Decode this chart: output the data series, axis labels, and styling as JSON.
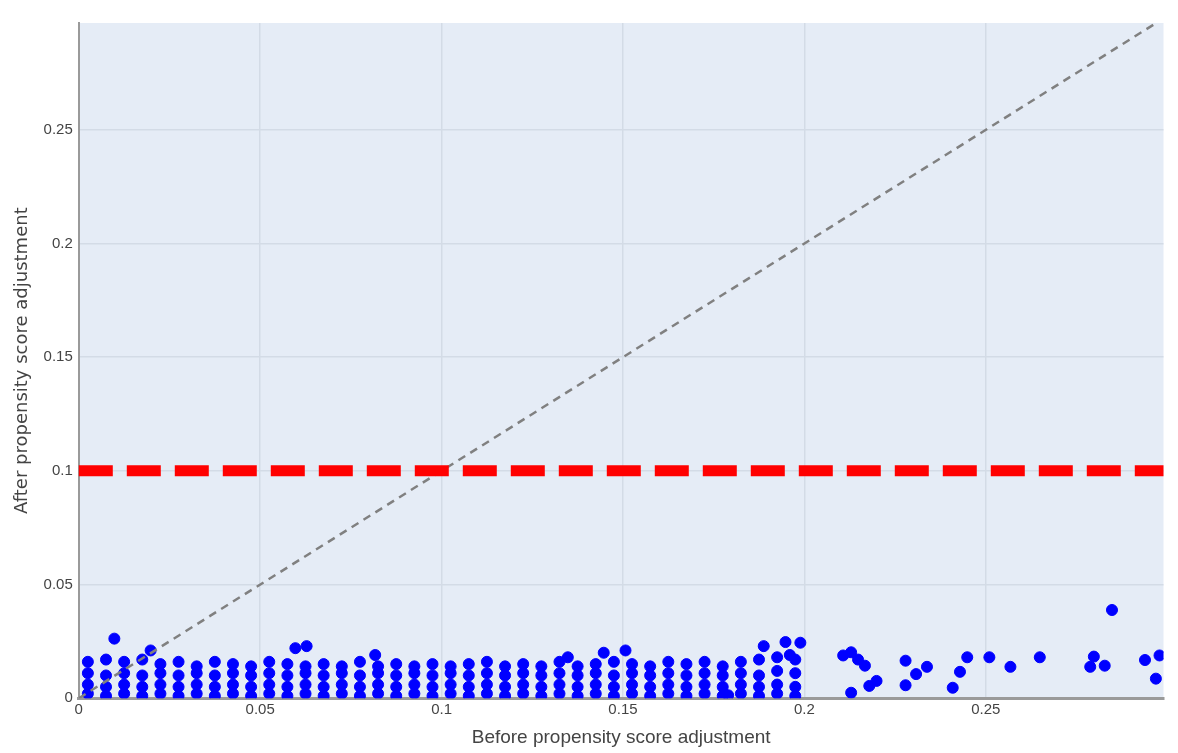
{
  "chart_data": {
    "type": "scatter",
    "xlabel": "Before propensity score adjustment",
    "ylabel": "After propensity score adjustment",
    "xlim": [
      0,
      0.299
    ],
    "ylim": [
      0,
      0.297
    ],
    "xticks": [
      0,
      0.05,
      0.1,
      0.15,
      0.2,
      0.25
    ],
    "yticks": [
      0,
      0.05,
      0.1,
      0.15,
      0.2,
      0.25
    ],
    "grid": true,
    "legend": false,
    "marker": "circle",
    "series": [
      {
        "color": "#0000ff",
        "x": [
          0.0025,
          0.0075,
          0.0125,
          0.0175,
          0.0225,
          0.0275,
          0.0325,
          0.0375,
          0.0425,
          0.0475,
          0.0525,
          0.0575,
          0.0625,
          0.0675,
          0.0725,
          0.0775,
          0.0825,
          0.0875,
          0.0925,
          0.0975,
          0.1025,
          0.1075,
          0.1125,
          0.1175,
          0.1225,
          0.1275,
          0.1325,
          0.1375,
          0.1425,
          0.1475,
          0.1525,
          0.1575,
          0.1625,
          0.1675,
          0.1725,
          0.1775,
          0.1825,
          0.1875,
          0.1925,
          0.1975
        ],
        "values": [
          0.016,
          0.017,
          0.016,
          0.017,
          0.015,
          0.016,
          0.014,
          0.016,
          0.015,
          0.014,
          0.016,
          0.015,
          0.014,
          0.015,
          0.014,
          0.016,
          0.014,
          0.015,
          0.014,
          0.015,
          0.014,
          0.015,
          0.016,
          0.014,
          0.015,
          0.014,
          0.016,
          0.014,
          0.015,
          0.016,
          0.015,
          0.014,
          0.016,
          0.015,
          0.016,
          0.014,
          0.016,
          0.017,
          0.018,
          0.017
        ]
      },
      {
        "color": "#0000ff",
        "x": [
          0.0025,
          0.0075,
          0.0125,
          0.0175,
          0.0225,
          0.0275,
          0.0325,
          0.0375,
          0.0425,
          0.0475,
          0.0525,
          0.0575,
          0.0625,
          0.0675,
          0.0725,
          0.0775,
          0.0825,
          0.0875,
          0.0925,
          0.0975,
          0.1025,
          0.1075,
          0.1125,
          0.1175,
          0.1225,
          0.1275,
          0.1325,
          0.1375,
          0.1425,
          0.1475,
          0.1525,
          0.1575,
          0.1625,
          0.1675,
          0.1725,
          0.1775,
          0.1825,
          0.1875,
          0.1925,
          0.1975
        ],
        "values": [
          0.011,
          0.01,
          0.011,
          0.01,
          0.011,
          0.01,
          0.011,
          0.01,
          0.011,
          0.01,
          0.011,
          0.01,
          0.011,
          0.01,
          0.011,
          0.01,
          0.011,
          0.01,
          0.011,
          0.01,
          0.011,
          0.01,
          0.011,
          0.01,
          0.011,
          0.01,
          0.011,
          0.01,
          0.011,
          0.01,
          0.011,
          0.01,
          0.011,
          0.01,
          0.011,
          0.01,
          0.011,
          0.01,
          0.012,
          0.011
        ]
      },
      {
        "color": "#0000ff",
        "x": [
          0.0025,
          0.0075,
          0.0125,
          0.0175,
          0.0225,
          0.0275,
          0.0325,
          0.0375,
          0.0425,
          0.0475,
          0.0525,
          0.0575,
          0.0625,
          0.0675,
          0.0725,
          0.0775,
          0.0825,
          0.0875,
          0.0925,
          0.0975,
          0.1025,
          0.1075,
          0.1125,
          0.1175,
          0.1225,
          0.1275,
          0.1325,
          0.1375,
          0.1425,
          0.1475,
          0.1525,
          0.1575,
          0.1625,
          0.1675,
          0.1725,
          0.1775,
          0.1825,
          0.1875,
          0.1925,
          0.1975
        ],
        "values": [
          0.006,
          0.005,
          0.006,
          0.005,
          0.006,
          0.005,
          0.006,
          0.005,
          0.006,
          0.005,
          0.006,
          0.005,
          0.006,
          0.005,
          0.006,
          0.005,
          0.006,
          0.005,
          0.006,
          0.005,
          0.006,
          0.005,
          0.006,
          0.005,
          0.006,
          0.005,
          0.006,
          0.005,
          0.006,
          0.005,
          0.006,
          0.005,
          0.006,
          0.005,
          0.006,
          0.005,
          0.006,
          0.005,
          0.006,
          0.005
        ]
      },
      {
        "color": "#0000ff",
        "x": [
          0.0025,
          0.0075,
          0.0125,
          0.0175,
          0.0225,
          0.0275,
          0.0325,
          0.0375,
          0.0425,
          0.0475,
          0.0525,
          0.0575,
          0.0625,
          0.0675,
          0.0725,
          0.0775,
          0.0825,
          0.0875,
          0.0925,
          0.0975,
          0.1025,
          0.1075,
          0.1125,
          0.1175,
          0.1225,
          0.1275,
          0.1325,
          0.1375,
          0.1425,
          0.1475,
          0.1525,
          0.1575,
          0.1625,
          0.1675,
          0.1725,
          0.1775,
          0.1825,
          0.1875,
          0.1925,
          0.1975
        ],
        "values": [
          0.002,
          0.001,
          0.002,
          0.001,
          0.002,
          0.001,
          0.002,
          0.001,
          0.002,
          0.001,
          0.002,
          0.001,
          0.002,
          0.001,
          0.002,
          0.001,
          0.002,
          0.001,
          0.002,
          0.001,
          0.002,
          0.001,
          0.002,
          0.001,
          0.002,
          0.001,
          0.002,
          0.001,
          0.002,
          0.001,
          0.002,
          0.001,
          0.002,
          0.001,
          0.002,
          0.001,
          0.002,
          0.001,
          0.002,
          0.001
        ]
      },
      {
        "color": "#0000ff",
        "x": [
          0.0098,
          0.0198,
          0.0597,
          0.0628,
          0.0817,
          0.1348,
          0.1447,
          0.1507,
          0.179,
          0.1888,
          0.1948,
          0.196,
          0.1989,
          0.2107,
          0.2129,
          0.2129,
          0.2148,
          0.2167,
          0.2179,
          0.2199,
          0.2279,
          0.2279,
          0.2308,
          0.2338,
          0.2409,
          0.2429,
          0.2449,
          0.251,
          0.2568,
          0.2649,
          0.2788,
          0.2798,
          0.2828,
          0.2848,
          0.2939,
          0.2969,
          0.2979
        ],
        "values": [
          0.0262,
          0.021,
          0.022,
          0.0229,
          0.019,
          0.018,
          0.02,
          0.021,
          0.0013,
          0.0229,
          0.0247,
          0.019,
          0.0244,
          0.0188,
          0.0202,
          0.0024,
          0.017,
          0.0143,
          0.0054,
          0.0076,
          0.0165,
          0.0057,
          0.0106,
          0.0138,
          0.0046,
          0.0116,
          0.018,
          0.018,
          0.0138,
          0.018,
          0.0138,
          0.0183,
          0.0143,
          0.0388,
          0.0168,
          0.0086,
          0.0188
        ]
      },
      {
        "type": "line",
        "color": "#808080",
        "line_style": "dashed",
        "marker": "none",
        "x": [
          0,
          0.297
        ],
        "values": [
          0,
          0.297
        ]
      }
    ],
    "ref_lines": [
      {
        "axis": "y",
        "value": 0.1,
        "color": "#ff0000",
        "line_style": "dashed"
      }
    ]
  }
}
